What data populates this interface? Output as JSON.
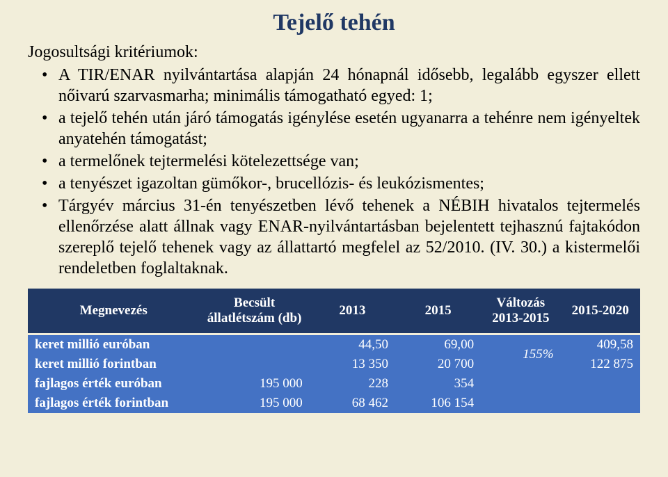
{
  "title": "Tejelő tehén",
  "intro": "Jogosultsági kritériumok:",
  "bullets": [
    "A TIR/ENAR nyilvántartása alapján 24 hónapnál idősebb, legalább egyszer ellett nőivarú szarvasmarha; minimális támogatható egyed: 1;",
    "a tejelő tehén után járó támogatás igénylése esetén ugyanarra a tehénre nem igényeltek anyatehén támogatást;",
    "a termelőnek tejtermelési kötelezettsége van;",
    "a tenyészet igazoltan gümőkor-, brucellózis- és leukózismentes;",
    "Tárgyév március 31-én tenyészetben lévő tehenek a NÉBIH hivatalos tejtermelés ellenőrzése alatt állnak vagy ENAR-nyilvántartásban bejelentett tejhasznú fajtakódon szereplő tejelő tehenek vagy az állattartó megfelel az 52/2010. (IV. 30.) a kistermelői rendeletben foglaltaknak."
  ],
  "table": {
    "headers": {
      "c0": "Megnevezés",
      "c1": "Becsült állatlétszám (db)",
      "c2": "2013",
      "c3": "2015",
      "c4": "Változás 2013-2015",
      "c5": "2015-2020"
    },
    "rows": {
      "r0": {
        "label": "keret millió euróban",
        "c1": "",
        "c2": "44,50",
        "c3": "69,00",
        "c4": "155%",
        "c5": "409,58"
      },
      "r1": {
        "label": "keret millió forintban",
        "c1": "",
        "c2": "13 350",
        "c3": "20 700",
        "c5": "122 875"
      },
      "r2": {
        "label": "fajlagos érték euróban",
        "c1": "195 000",
        "c2": "228",
        "c3": "354",
        "c4": "",
        "c5": ""
      },
      "r3": {
        "label": "fajlagos érték forintban",
        "c1": "195 000",
        "c2": "68 462",
        "c3": "106 154",
        "c4": "",
        "c5": ""
      }
    }
  },
  "colors": {
    "background": "#f2eeda",
    "title": "#203864",
    "thead_bg": "#203864",
    "tbody_bg": "#4472c4",
    "text_light": "#ffffff",
    "text_body": "#000000"
  },
  "typography": {
    "title_fontsize": 34,
    "body_fontsize": 24,
    "table_fontsize": 19,
    "font_family": "Times New Roman"
  }
}
